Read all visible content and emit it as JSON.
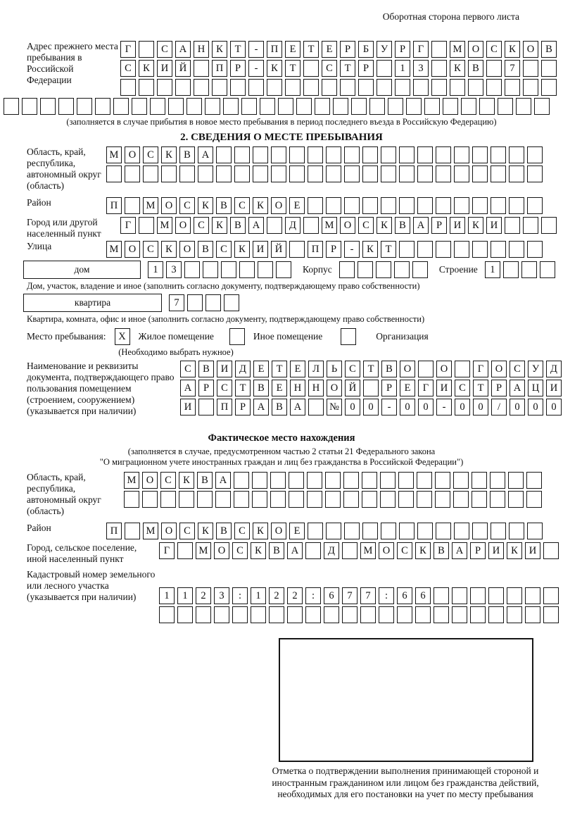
{
  "page": {
    "top_note": "Оборотная сторона первого листа"
  },
  "prev_address": {
    "label": "Адрес прежнего места пребывания в Российской Федерации",
    "rows": [
      "Г САНКТ-ПЕТЕРБУРГ МОСКОВ",
      "СКИЙ ПР-КТ СТР 13 КВ 7",
      ""
    ],
    "full_row": "",
    "note": "(заполняется в случае прибытия в новое место пребывания в период последнего въезда в Российскую Федерацию)"
  },
  "section2": {
    "title": "2. СВЕДЕНИЯ О МЕСТЕ ПРЕБЫВАНИЯ",
    "oblast": {
      "label": "Область, край, республика, автономный округ (область)",
      "rows": [
        "МОСКВА",
        ""
      ]
    },
    "raion": {
      "label": "Район",
      "value": "П МОСКВСКОЕ"
    },
    "gorod": {
      "label": "Город или другой населенный пункт",
      "value": "Г МОСКВА Д МОСКВАРИКИ"
    },
    "ulitsa": {
      "label": "Улица",
      "value": "МОСКОВСКИЙ ПР-КТ"
    },
    "dom": {
      "box_label": "дом",
      "value": "13",
      "korpus_label": "Корпус",
      "korpus_value": "",
      "stroenie_label": "Строение",
      "stroenie_value": "1"
    },
    "dom_note": "Дом, участок, владение и иное (заполнить согласно документу, подтверждающему право собственности)",
    "kvartira": {
      "box_label": "квартира",
      "value": "7"
    },
    "kvartira_note": "Квартира, комната, офис и иное (заполнить согласно документу, подтверждающему право собственности)",
    "mesto": {
      "label": "Место пребывания:",
      "options": [
        {
          "label": "Жилое помещение",
          "checked": "X"
        },
        {
          "label": "Иное помещение",
          "checked": ""
        },
        {
          "label": "Организация",
          "checked": ""
        }
      ],
      "note": "(Необходимо выбрать нужное)"
    },
    "doc": {
      "label": "Наименование и реквизиты документа, подтверждающего право пользования помещением (строением, сооружением) (указывается при наличии)",
      "rows": [
        "СВИДЕТЕЛЬСТВО О ГОСУД",
        "АРСТВЕННОЙ РЕГИСТРАЦИ",
        "И ПРАВА №00-00-00/000"
      ]
    }
  },
  "factual": {
    "title": "Фактическое место нахождения",
    "note1": "(заполняется в случае, предусмотренном частью 2 статьи 21 Федерального закона",
    "note2": "\"О миграционном учете иностранных граждан и лиц без гражданства в Российской Федерации\")",
    "oblast": {
      "label": "Область, край, республика, автономный округ (область)",
      "rows": [
        "МОСКВА",
        ""
      ]
    },
    "raion": {
      "label": "Район",
      "value": "П МОСКВСКОЕ"
    },
    "gorod": {
      "label": "Город, сельское поселение, иной населенный пункт",
      "value": "Г МОСКВА Д МОСКВАРИКИ"
    },
    "kadastr": {
      "label": "Кадастровый номер земельного или лесного участка (указывается при наличии)",
      "rows": [
        "1123:122:677:66",
        ""
      ]
    }
  },
  "stamp": {
    "caption": "Отметка о подтверждении выполнения принимающей стороной и иностранным гражданином или лицом без гражданства действий, необходимых для его постановки на учет по месту пребывания"
  }
}
